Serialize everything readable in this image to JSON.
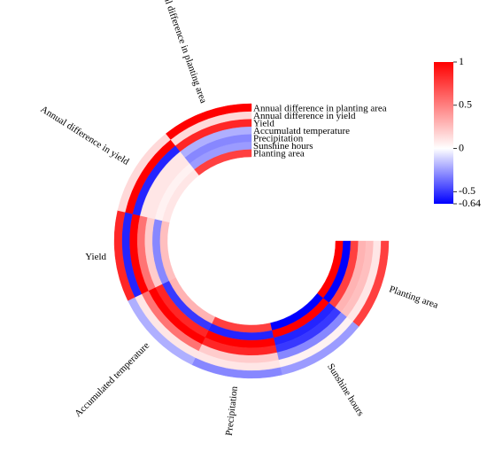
{
  "chart_data": {
    "type": "heatmap",
    "layout": "circular",
    "variables": [
      "Planting area",
      "Sunshine hours",
      "Precipitation",
      "Accumulatd temperature",
      "Yield",
      "Annual difference in yield",
      "Annual difference in planting area"
    ],
    "sector_labels": [
      "Planting area",
      "Sunshine hours",
      "Precipitation",
      "Accumulated temperature",
      "Yield",
      "Annual difference in yield",
      "Annual difference in planting area"
    ],
    "values": [
      [
        1,
        -0.64,
        0.75,
        0.3,
        0.25,
        0.1,
        0.75
      ],
      [
        -0.64,
        1,
        -0.55,
        -0.5,
        -0.3,
        0.05,
        -0.25
      ],
      [
        0.75,
        -0.55,
        1,
        0.85,
        0.2,
        0.1,
        -0.3
      ],
      [
        0.3,
        -0.5,
        0.85,
        1,
        0.55,
        0.1,
        -0.2
      ],
      [
        0.25,
        -0.3,
        0.2,
        0.55,
        1,
        -0.55,
        0.85
      ],
      [
        0.1,
        0.05,
        0.1,
        0.1,
        -0.55,
        1,
        0.15
      ],
      [
        0.75,
        -0.25,
        -0.3,
        -0.2,
        0.85,
        0.15,
        1
      ]
    ],
    "colorbar": {
      "min": -0.64,
      "max": 1,
      "ticks": [
        1,
        0.5,
        0,
        -0.5,
        -0.64
      ],
      "tick_labels": [
        "1",
        "0.5",
        "0",
        "-0.5",
        "-0.64"
      ],
      "colors": {
        "low": "#0000ff",
        "mid": "#ffffff",
        "high": "#ff0000"
      }
    }
  }
}
